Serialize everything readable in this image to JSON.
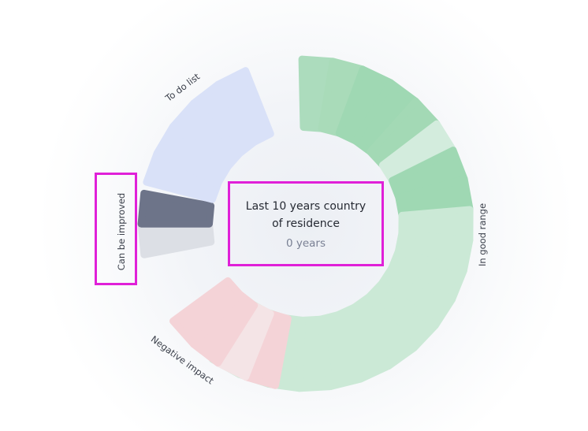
{
  "center": {
    "title": "Last 10 years country of residence",
    "value": "0 years"
  },
  "groups": {
    "todo": {
      "label": "To do list",
      "count": 5,
      "color": "#d9e1f8"
    },
    "good": {
      "label": "In good range",
      "count": 20
    },
    "improve": {
      "label": "Can be improved",
      "count": 2,
      "colors": [
        "#dcdfe5",
        "#6d7489"
      ]
    },
    "negative": {
      "label": "Negative impact",
      "count": 4,
      "colors": [
        "#f4d3d7",
        "#f4e4e6",
        "#f4d3d7",
        "#f4d3d7"
      ]
    }
  },
  "good_colors": [
    "#acdcbd",
    "#a9dbb9",
    "#9fd8b3",
    "#9fd8b3",
    "#a3d9b5",
    "#d3ecdd",
    "#9fd8b3",
    "#9fd8b3",
    "#cbe9d6",
    "#cbe9d6",
    "#cbe9d6",
    "#cbe9d6",
    "#cbe9d6",
    "#cbe9d6",
    "#cbe9d6",
    "#cbe9d6",
    "#cbe9d6",
    "#cbe9d6",
    "#cbe9d6",
    "#cbe9d6"
  ]
}
